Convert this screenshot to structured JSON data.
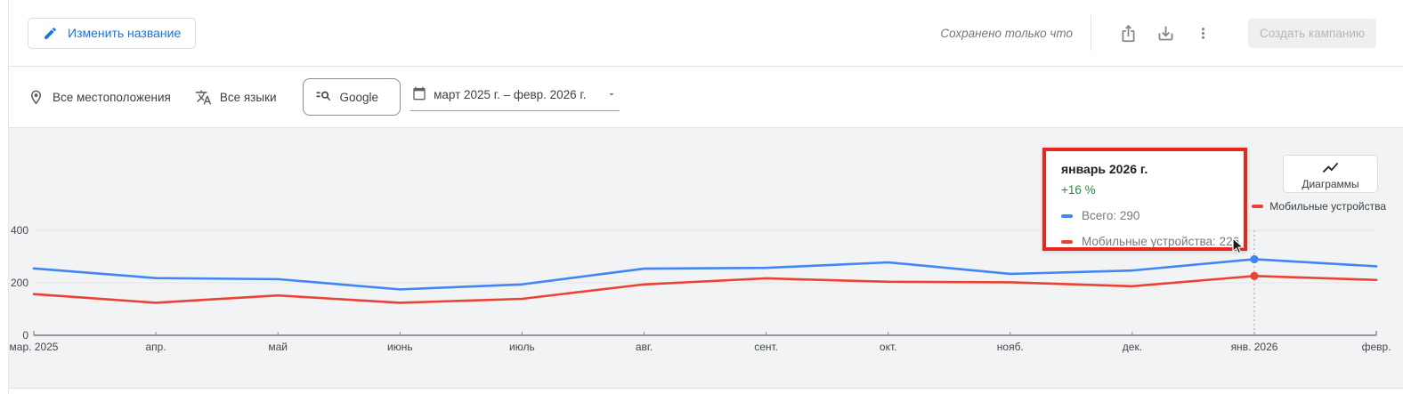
{
  "header": {
    "edit_title_button": "Изменить название",
    "saved_status": "Сохранено только что",
    "create_campaign_button": "Создать кампанию"
  },
  "filters": {
    "locations": "Все местоположения",
    "languages": "Все языки",
    "network": "Google",
    "date_range": "март 2025 г. – февр. 2026 г."
  },
  "chart_panel": {
    "charts_button": "Диаграммы",
    "legend": [
      {
        "label": "Всего",
        "color": "#4285f4"
      },
      {
        "label": "Мобильные устройства",
        "color": "#ea4335"
      }
    ],
    "tooltip": {
      "title": "январь 2026 г.",
      "change": "+16 %",
      "change_color": "#1e8e3e",
      "highlight_box_color": "#e5271d",
      "rows": [
        {
          "label": "Всего: 290",
          "color": "#4285f4"
        },
        {
          "label": "Мобильные устройства: 226",
          "color": "#ea4335"
        }
      ]
    }
  },
  "chart_data": {
    "type": "line",
    "x": [
      "мар. 2025",
      "апр.",
      "май",
      "июнь",
      "июль",
      "авг.",
      "сент.",
      "окт.",
      "нояб.",
      "дек.",
      "янв. 2026",
      "февр."
    ],
    "series": [
      {
        "name": "Всего",
        "color": "#4285f4",
        "values": [
          255,
          218,
          214,
          175,
          194,
          254,
          257,
          278,
          234,
          247,
          290,
          263
        ]
      },
      {
        "name": "Мобильные устройства",
        "color": "#ea4335",
        "values": [
          157,
          124,
          152,
          124,
          139,
          194,
          217,
          204,
          202,
          187,
          226,
          211
        ]
      }
    ],
    "ylim": [
      0,
      400
    ],
    "yticks": [
      0,
      200,
      400
    ],
    "grid": true,
    "legend_position": "top-right",
    "highlight": {
      "index": 10,
      "x_label": "янв. 2026",
      "values": [
        290,
        226
      ]
    }
  },
  "icons": {
    "edit": "pencil-icon",
    "share": "share-icon",
    "download": "download-icon",
    "more": "more-vert-icon",
    "locations": "location-pin-icon",
    "languages": "translate-icon",
    "network": "search-lines-icon",
    "date": "calendar-icon",
    "date_arrow": "chevron-down-icon",
    "charts": "line-chart-icon"
  },
  "colors": {
    "accent_blue": "#1a73e8",
    "chart_background": "#f1f3f4",
    "axis_gray": "#757575",
    "positive_green": "#1e8e3e"
  }
}
